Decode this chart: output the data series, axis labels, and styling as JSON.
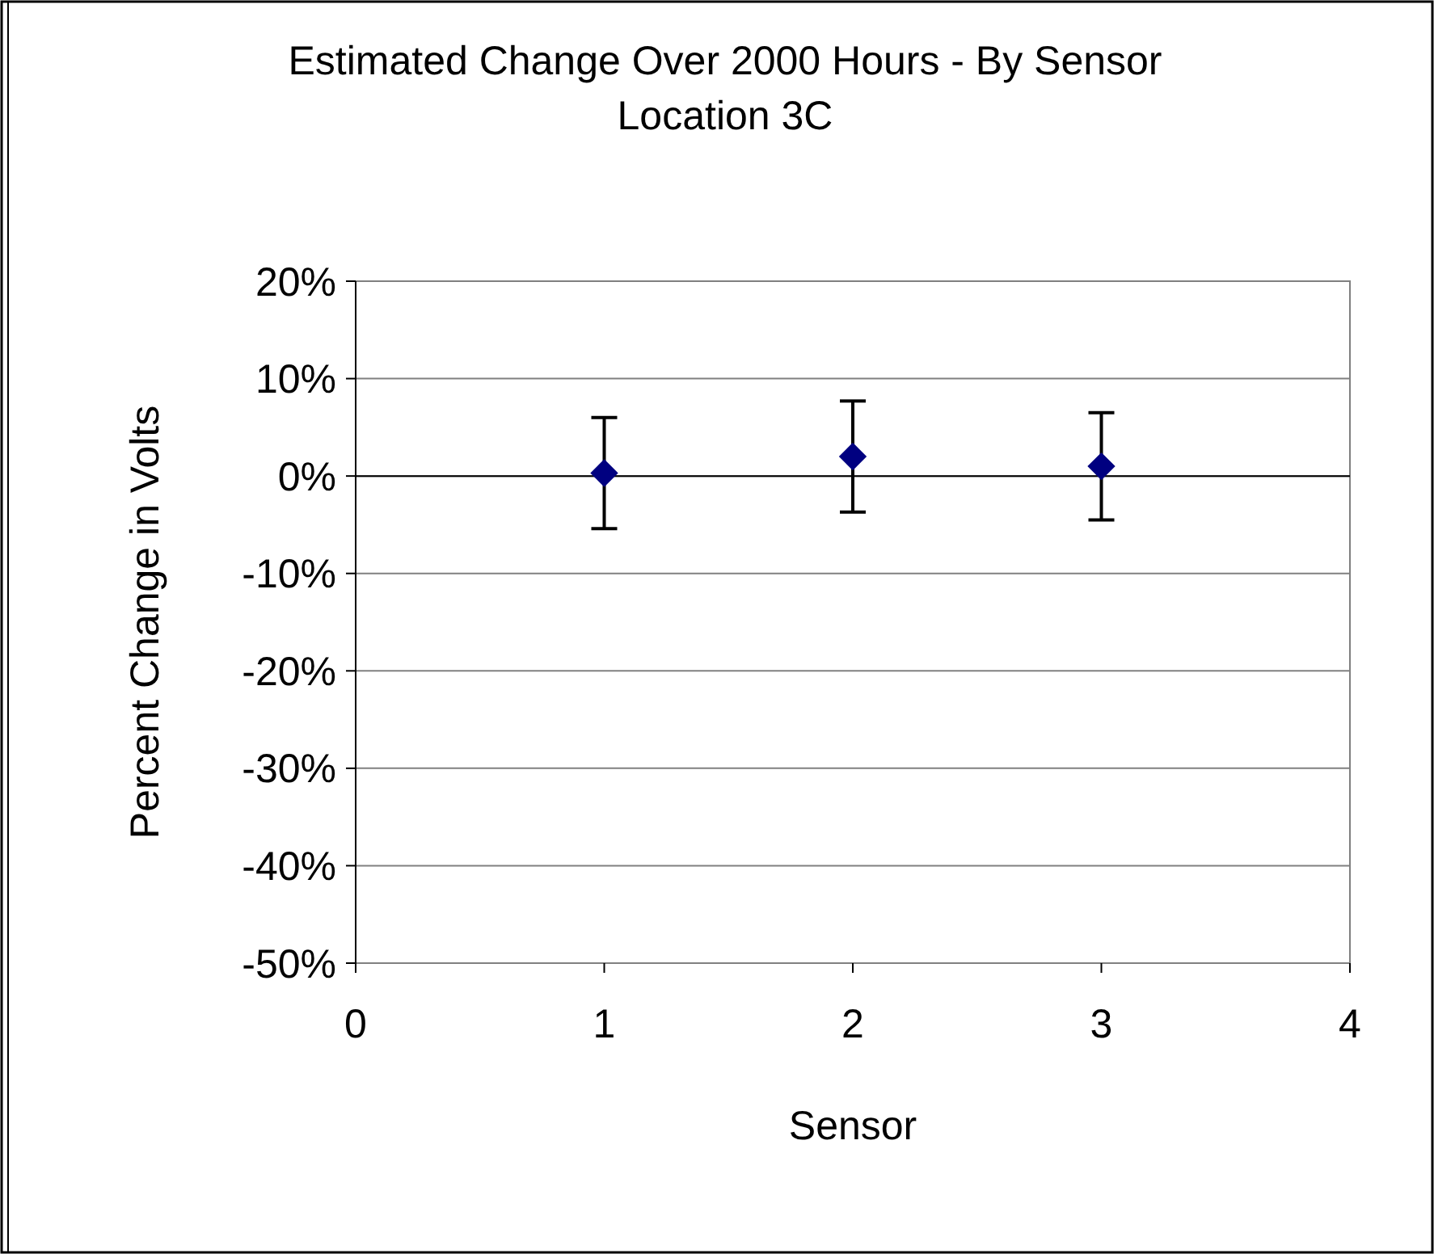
{
  "chart_data": {
    "type": "scatter",
    "title": "Estimated Change Over 2000 Hours - By Sensor Location 3C",
    "xlabel": "Sensor",
    "ylabel": "Percent Change in Volts",
    "x": [
      1,
      2,
      3
    ],
    "series": [
      {
        "color": "#000080",
        "values": [
          0.3,
          2.0,
          1.0
        ],
        "errors": [
          5.7,
          5.7,
          5.5
        ]
      }
    ],
    "xlim": [
      0,
      4
    ],
    "xticks": [
      0,
      1,
      2,
      3,
      4
    ],
    "ylim": [
      -50,
      20
    ],
    "yticks": [
      {
        "value": -50,
        "label": "-50%"
      },
      {
        "value": -40,
        "label": "-40%"
      },
      {
        "value": -30,
        "label": "-30%"
      },
      {
        "value": -20,
        "label": "-20%"
      },
      {
        "value": -10,
        "label": "-10%"
      },
      {
        "value": 0,
        "label": "0%"
      },
      {
        "value": 10,
        "label": "10%"
      },
      {
        "value": 20,
        "label": "20%"
      }
    ],
    "grid": "y",
    "marker": "diamond"
  }
}
